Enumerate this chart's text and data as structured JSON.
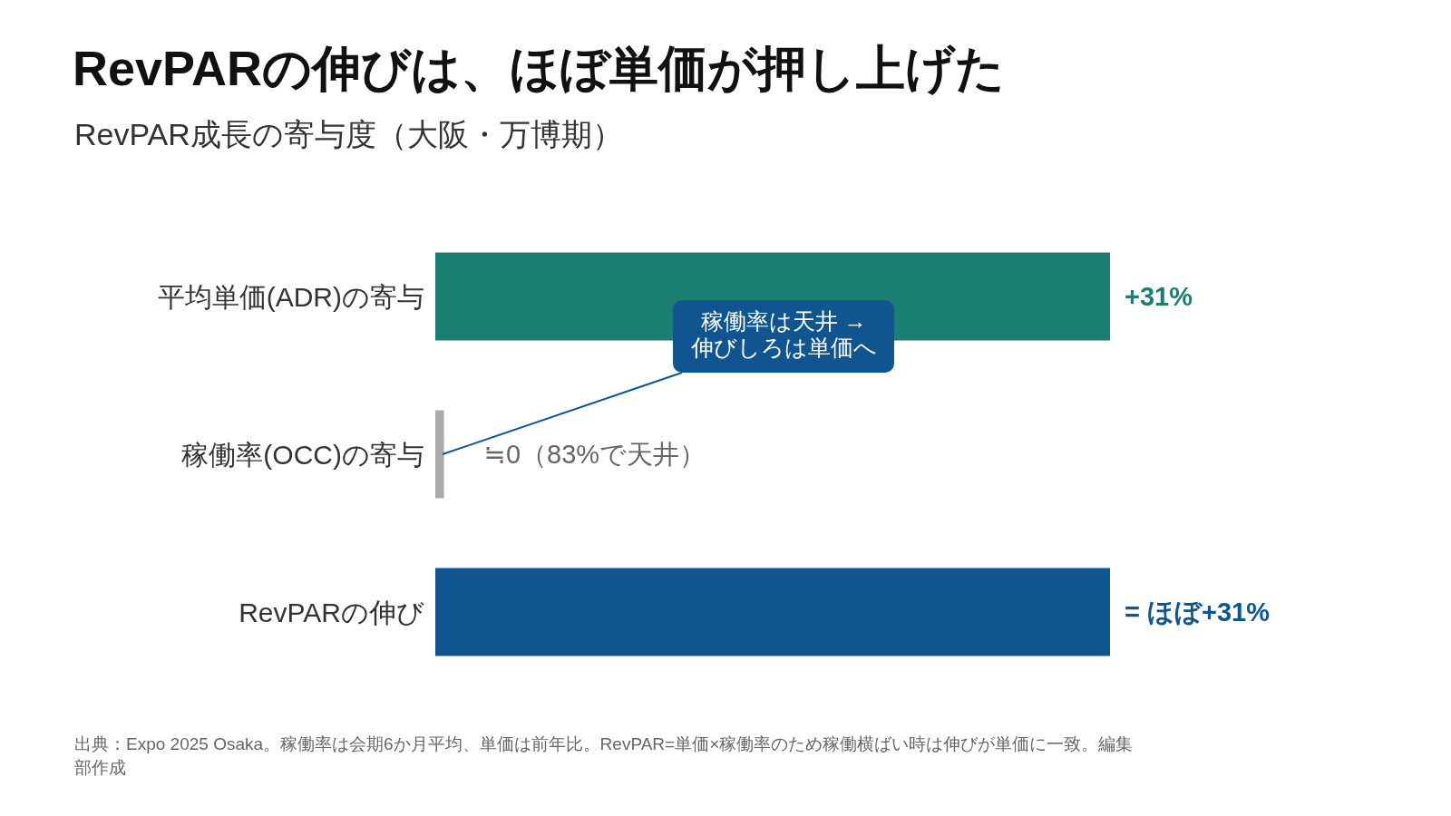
{
  "chart_data": {
    "type": "bar",
    "orientation": "horizontal",
    "title": "RevPARの伸びは、ほぼ単価が押し上げた",
    "subtitle": "RevPAR成長の寄与度（大阪・万博期）",
    "categories": [
      "平均単価(ADR)の寄与",
      "稼働率(OCC)の寄与",
      "RevPARの伸び"
    ],
    "values": [
      31,
      0.4,
      31
    ],
    "xlim": [
      0,
      31
    ],
    "colors": [
      "#1a7f72",
      "#aaaaaa",
      "#10558f"
    ],
    "value_labels": [
      "+31%",
      "≒0（83%で天井）",
      "= ほぼ+31%"
    ],
    "annotations": [
      "稼働率は天井 →\n伸びしろは単価へ",
      "出典：Expo 2025 Osaka。稼働率は会期6か月平均、単価は前年比。RevPAR=単価×稼働率のため稼働横ばい時は伸びが単価に一致。編集部作成"
    ]
  }
}
